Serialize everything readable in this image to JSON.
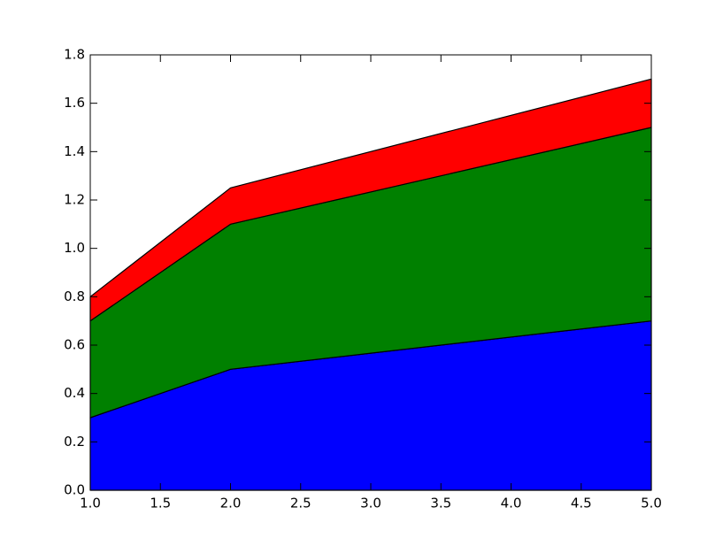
{
  "chart_data": {
    "type": "stacked_area",
    "x": [
      1,
      2,
      5
    ],
    "series": [
      {
        "color": "#0000ff",
        "values": [
          0.3,
          0.5,
          0.7
        ]
      },
      {
        "color": "#008000",
        "values": [
          0.4,
          0.6,
          0.8
        ]
      },
      {
        "color": "#ff0000",
        "values": [
          0.1,
          0.15,
          0.2
        ]
      }
    ],
    "xlim": [
      1,
      5
    ],
    "xticks": [
      {
        "value": 1,
        "label": "1.0"
      },
      1.5,
      {
        "value": 2,
        "label": "2.0"
      },
      2.5,
      {
        "value": 3,
        "label": "3.0"
      },
      3.5,
      {
        "value": 4,
        "label": "4.0"
      },
      4.5,
      {
        "value": 5,
        "label": "5.0"
      }
    ],
    "ylim": [
      0,
      1.8
    ],
    "yticks": [
      {
        "value": 0,
        "label": "0.0"
      },
      0.2,
      0.4,
      0.6,
      0.8,
      {
        "value": 1,
        "label": "1.0"
      },
      1.2,
      1.4,
      1.6,
      1.8
    ],
    "grid": false
  }
}
